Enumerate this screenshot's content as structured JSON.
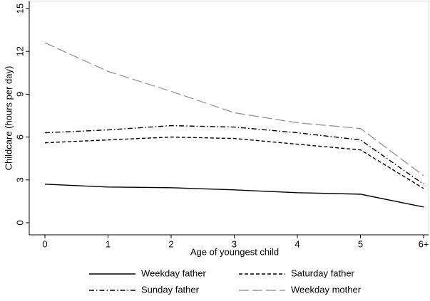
{
  "chart_data": {
    "type": "line",
    "x_label": "Age of youngest child",
    "y_label": "Childcare (hours per day)",
    "categories": [
      "0",
      "1",
      "2",
      "3",
      "4",
      "5",
      "6+"
    ],
    "ylim": [
      0,
      15
    ],
    "yticks": [
      0,
      3,
      6,
      9,
      12,
      15
    ],
    "legend": "bottom",
    "series": [
      {
        "name": "Weekday father",
        "color": "#000000",
        "style": "solid",
        "values": [
          2.7,
          2.5,
          2.45,
          2.3,
          2.1,
          2.0,
          1.1
        ]
      },
      {
        "name": "Saturday father",
        "color": "#000000",
        "style": "dash",
        "values": [
          5.6,
          5.8,
          6.0,
          5.9,
          5.5,
          5.1,
          2.4
        ]
      },
      {
        "name": "Sunday father",
        "color": "#000000",
        "style": "dash-dot",
        "values": [
          6.3,
          6.5,
          6.8,
          6.7,
          6.3,
          5.8,
          2.7
        ]
      },
      {
        "name": "Weekday mother",
        "color": "#999999",
        "style": "long-dash",
        "values": [
          12.6,
          10.6,
          9.2,
          7.7,
          7.0,
          6.6,
          3.3
        ]
      }
    ]
  }
}
